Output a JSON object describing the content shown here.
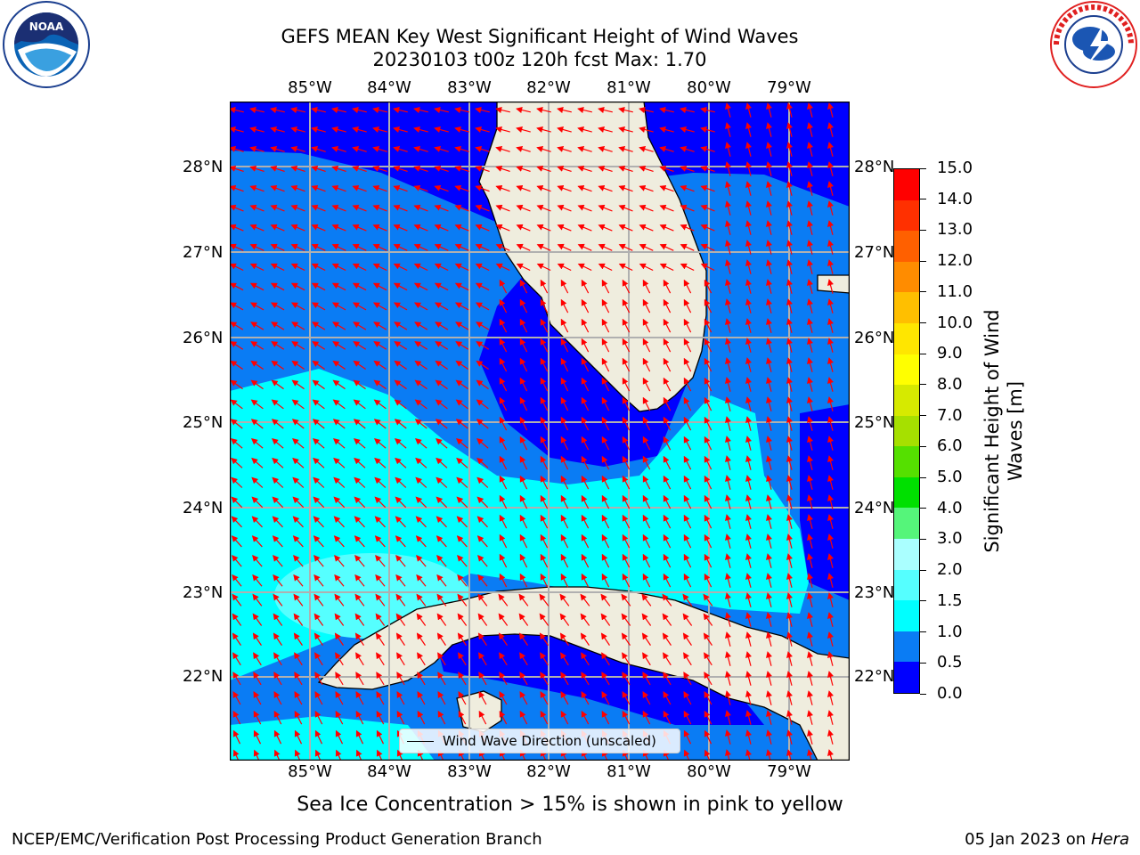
{
  "title": {
    "line1": "GEFS MEAN Key West Significant Height of Wind Waves",
    "line2": "20230103 t00z 120h fcst   Max: 1.70"
  },
  "logos": {
    "left_name": "NOAA",
    "left_ring_text": "NATIONAL OCEANIC AND ATMOSPHERIC ADMINISTRATION · U.S. DEPARTMENT OF COMMERCE",
    "right_ring_text": "NATIONAL WEATHER SERVICE"
  },
  "axes": {
    "lon_labels": [
      "85°W",
      "84°W",
      "83°W",
      "82°W",
      "81°W",
      "80°W",
      "79°W"
    ],
    "lat_labels": [
      "28°N",
      "27°N",
      "26°N",
      "25°N",
      "24°N",
      "23°N",
      "22°N"
    ]
  },
  "legend": {
    "label": "Wind Wave Direction (unscaled)"
  },
  "colorbar": {
    "label": "Significant Height of Wind Waves [m]",
    "ticks": [
      "0.0",
      "0.5",
      "1.0",
      "1.5",
      "2.0",
      "3.0",
      "4.0",
      "5.0",
      "6.0",
      "7.0",
      "8.0",
      "9.0",
      "10.0",
      "11.0",
      "12.0",
      "13.0",
      "14.0",
      "15.0"
    ],
    "colors": [
      "#0000ff",
      "#0a7cf4",
      "#00ffff",
      "#55ffff",
      "#aaffff",
      "#55f57a",
      "#00e000",
      "#55e000",
      "#a6e000",
      "#d6ea00",
      "#ffff00",
      "#ffe600",
      "#ffbf00",
      "#ff8c00",
      "#ff6000",
      "#ff3000",
      "#ff0000"
    ]
  },
  "caption": "Sea Ice Concentration > 15% is shown in pink to yellow",
  "footer": {
    "left": "NCEP/EMC/Verification Post Processing Product Generation Branch",
    "right_date": "05 Jan 2023 on ",
    "right_host": "Hera"
  },
  "colors": {
    "land": "#efedde",
    "arrow": "#ff0000",
    "grid": "#b0b0b0"
  }
}
